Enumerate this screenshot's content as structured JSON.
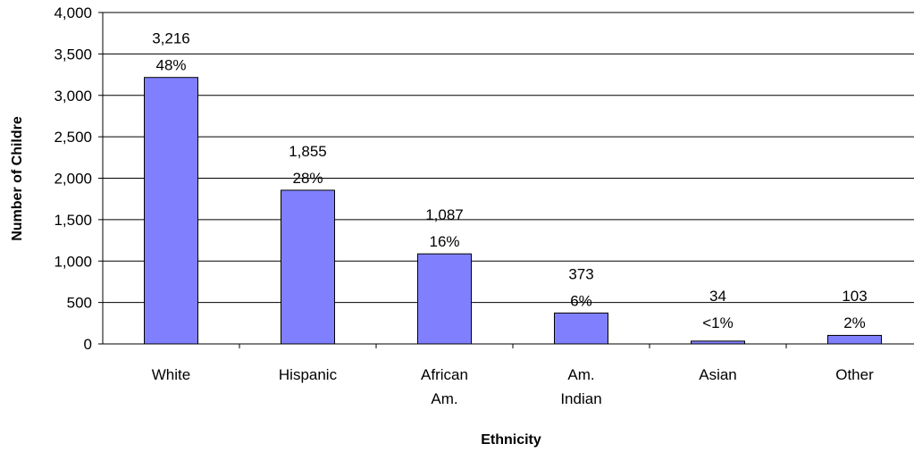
{
  "chart_data": {
    "type": "bar",
    "categories": [
      [
        "White"
      ],
      [
        "Hispanic"
      ],
      [
        "African",
        "Am."
      ],
      [
        "Am.",
        "Indian"
      ],
      [
        "Asian"
      ],
      [
        "Other"
      ]
    ],
    "values": [
      3216,
      1855,
      1087,
      373,
      34,
      103
    ],
    "value_labels": [
      "3,216",
      "1,855",
      "1,087",
      "373",
      "34",
      "103"
    ],
    "percent_labels": [
      "48%",
      "28%",
      "16%",
      "6%",
      "<1%",
      "2%"
    ],
    "xlabel": "Ethnicity",
    "ylabel": "Number of Childre",
    "ylim": [
      0,
      4000
    ],
    "yticks": [
      0,
      500,
      1000,
      1500,
      2000,
      2500,
      3000,
      3500,
      4000
    ],
    "ytick_labels": [
      "0",
      "500",
      "1,000",
      "1,500",
      "2,000",
      "2,500",
      "3,000",
      "3,500",
      "4,000"
    ],
    "grid": true,
    "legend": "none",
    "bar_color": "#8080ff",
    "bar_edge_color": "#000000"
  }
}
